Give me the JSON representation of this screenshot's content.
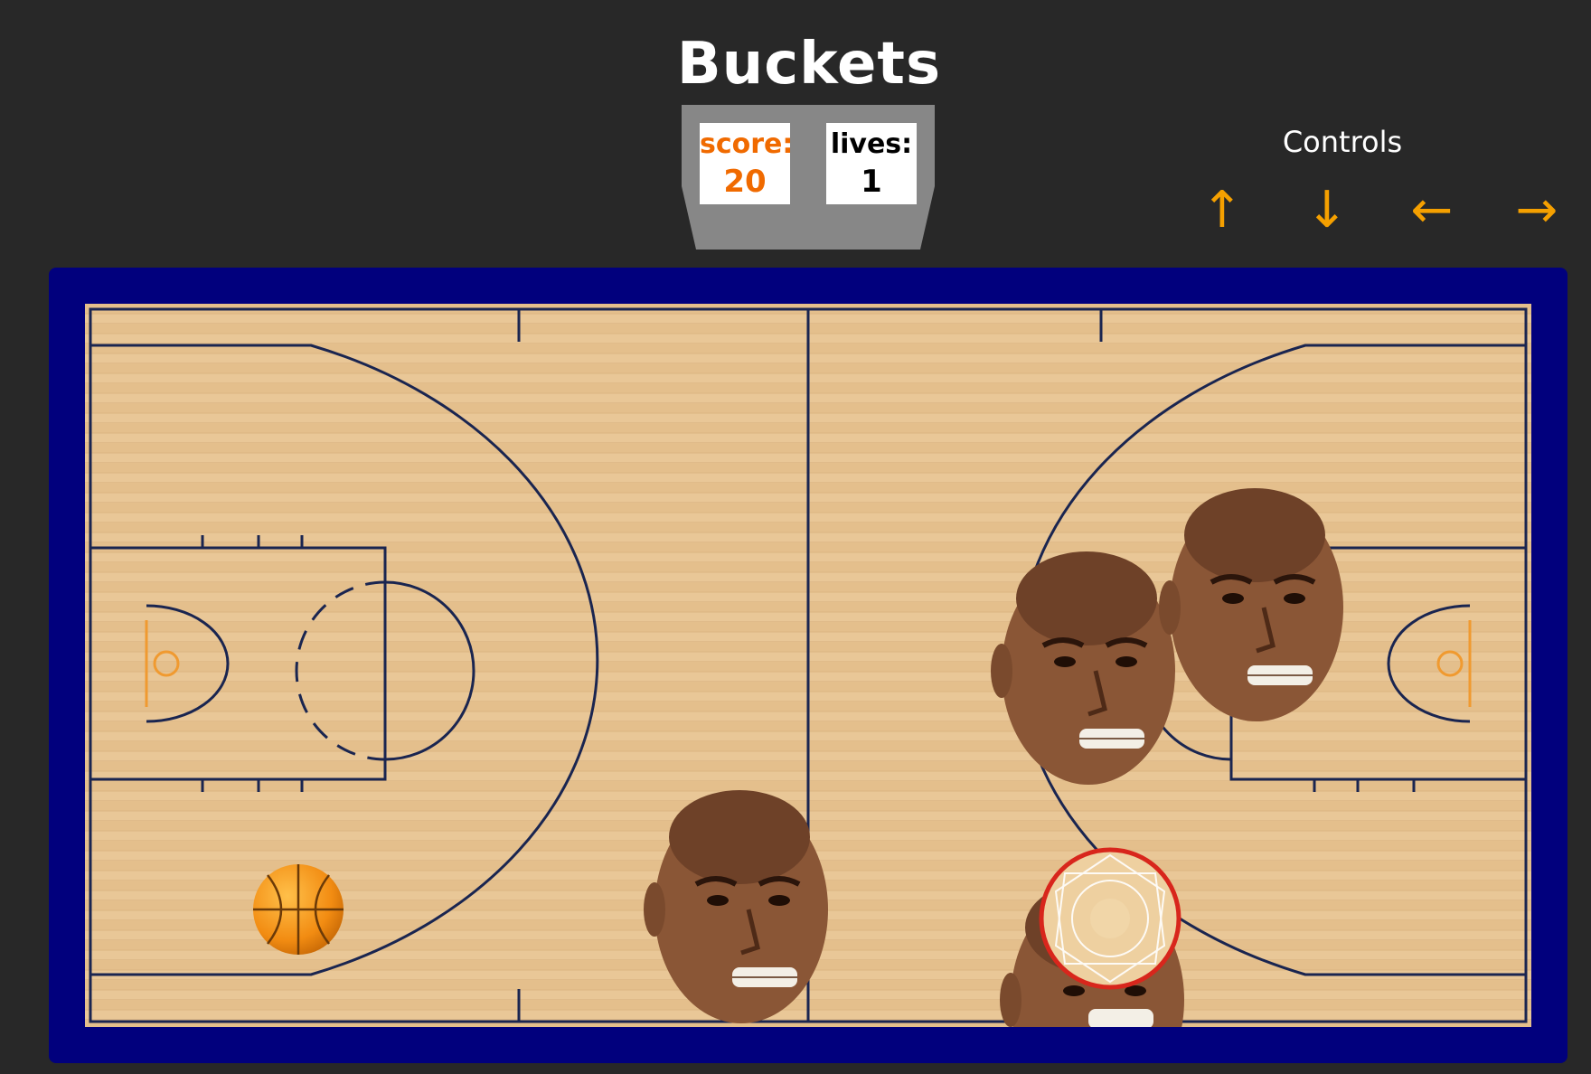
{
  "game": {
    "title": "Buckets"
  },
  "scoreboard": {
    "score_label": "score:",
    "score_value": "20",
    "lives_label": "lives:",
    "lives_value": "1"
  },
  "controls": {
    "title": "Controls",
    "up": "↑",
    "down": "↓",
    "left": "←",
    "right": "→",
    "accent_color": "#f5a000"
  },
  "colors": {
    "background": "#282828",
    "court_frame": "#01007d",
    "court_wood": "#e8c596",
    "court_lines": "#1a2550",
    "score_color": "#f06a00"
  },
  "sprites": {
    "ball": "basketball-icon",
    "hoop": "hoop-icon",
    "enemy": "defender-head-icon"
  }
}
